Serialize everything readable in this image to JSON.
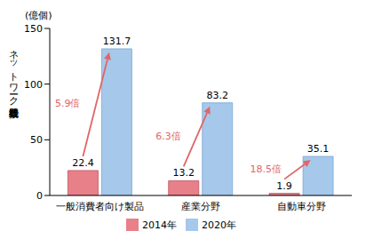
{
  "chart_data": {
    "type": "bar",
    "y_unit": "(億個)",
    "ylabel": "ネットワーク接続機器数",
    "categories": [
      "一般消費者向け製品",
      "産業分野",
      "自動車分野"
    ],
    "series": [
      {
        "name": "2014年",
        "color": "#e8808a",
        "values": [
          22.4,
          13.2,
          1.9
        ]
      },
      {
        "name": "2020年",
        "color": "#a6c8ea",
        "values": [
          131.7,
          83.2,
          35.1
        ]
      }
    ],
    "annotations": [
      "5.9倍",
      "6.3倍",
      "18.5倍"
    ],
    "ylim": [
      0,
      150
    ],
    "yticks": [
      0,
      50,
      100,
      150
    ],
    "grid": false,
    "data_labels": true,
    "legend": "bottom"
  }
}
